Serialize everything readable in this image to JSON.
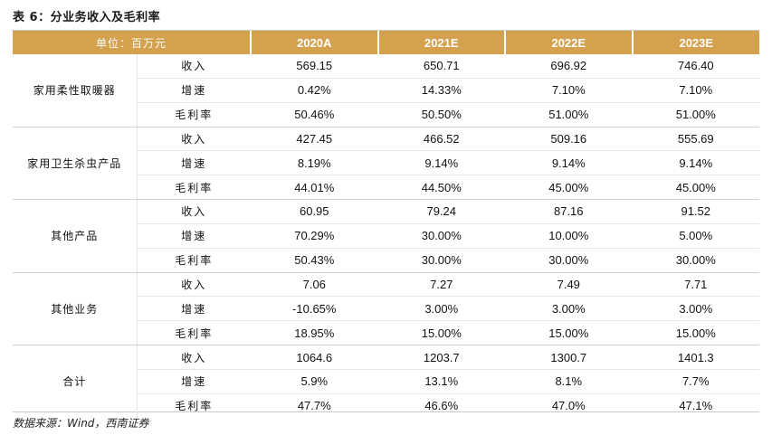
{
  "title": "表 6：分业务收入及毛利率",
  "header": [
    "单位：百万元",
    "2020A",
    "2021E",
    "2022E",
    "2023E"
  ],
  "groups": [
    {
      "name": "家用柔性取暖器",
      "rows": [
        {
          "metric": "收入",
          "values": [
            "569.15",
            "650.71",
            "696.92",
            "746.40"
          ]
        },
        {
          "metric": "增速",
          "values": [
            "0.42%",
            "14.33%",
            "7.10%",
            "7.10%"
          ]
        },
        {
          "metric": "毛利率",
          "values": [
            "50.46%",
            "50.50%",
            "51.00%",
            "51.00%"
          ]
        }
      ]
    },
    {
      "name": "家用卫生杀虫产品",
      "rows": [
        {
          "metric": "收入",
          "values": [
            "427.45",
            "466.52",
            "509.16",
            "555.69"
          ]
        },
        {
          "metric": "增速",
          "values": [
            "8.19%",
            "9.14%",
            "9.14%",
            "9.14%"
          ]
        },
        {
          "metric": "毛利率",
          "values": [
            "44.01%",
            "44.50%",
            "45.00%",
            "45.00%"
          ]
        }
      ]
    },
    {
      "name": "其他产品",
      "rows": [
        {
          "metric": "收入",
          "values": [
            "60.95",
            "79.24",
            "87.16",
            "91.52"
          ]
        },
        {
          "metric": "增速",
          "values": [
            "70.29%",
            "30.00%",
            "10.00%",
            "5.00%"
          ]
        },
        {
          "metric": "毛利率",
          "values": [
            "50.43%",
            "30.00%",
            "30.00%",
            "30.00%"
          ]
        }
      ]
    },
    {
      "name": "其他业务",
      "rows": [
        {
          "metric": "收入",
          "values": [
            "7.06",
            "7.27",
            "7.49",
            "7.71"
          ]
        },
        {
          "metric": "增速",
          "values": [
            "-10.65%",
            "3.00%",
            "3.00%",
            "3.00%"
          ]
        },
        {
          "metric": "毛利率",
          "values": [
            "18.95%",
            "15.00%",
            "15.00%",
            "15.00%"
          ]
        }
      ]
    },
    {
      "name": "合计",
      "rows": [
        {
          "metric": "收入",
          "values": [
            "1064.6",
            "1203.7",
            "1300.7",
            "1401.3"
          ]
        },
        {
          "metric": "增速",
          "values": [
            "5.9%",
            "13.1%",
            "8.1%",
            "7.7%"
          ]
        },
        {
          "metric": "毛利率",
          "values": [
            "47.7%",
            "46.6%",
            "47.0%",
            "47.1%"
          ]
        }
      ]
    }
  ],
  "source": "数据来源：Wind，西南证券",
  "colors": {
    "header_bg": "#d4a14e",
    "header_text": "#ffffff"
  }
}
